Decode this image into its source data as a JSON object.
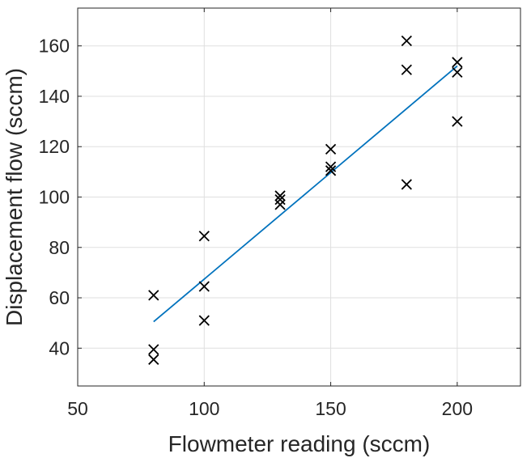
{
  "chart_data": {
    "type": "scatter",
    "xlabel": "Flowmeter reading (sccm)",
    "ylabel": "Displacement flow (sccm)",
    "xlim": [
      50,
      225
    ],
    "ylim": [
      25,
      175
    ],
    "xticks": [
      50,
      100,
      150,
      200
    ],
    "yticks": [
      40,
      60,
      80,
      100,
      120,
      140,
      160
    ],
    "grid": true,
    "legend": "none",
    "marker": "x",
    "marker_color": "#000000",
    "points": [
      {
        "x": 80,
        "y": 61
      },
      {
        "x": 80,
        "y": 39.5
      },
      {
        "x": 80,
        "y": 35.5
      },
      {
        "x": 100,
        "y": 84.5
      },
      {
        "x": 100,
        "y": 64.5
      },
      {
        "x": 100,
        "y": 51
      },
      {
        "x": 130,
        "y": 100.5
      },
      {
        "x": 130,
        "y": 99
      },
      {
        "x": 130,
        "y": 97
      },
      {
        "x": 150,
        "y": 119
      },
      {
        "x": 150,
        "y": 112
      },
      {
        "x": 150,
        "y": 110.5
      },
      {
        "x": 180,
        "y": 162
      },
      {
        "x": 180,
        "y": 150.5
      },
      {
        "x": 180,
        "y": 105
      },
      {
        "x": 200,
        "y": 153.5
      },
      {
        "x": 200,
        "y": 149.5
      },
      {
        "x": 200,
        "y": 130
      }
    ],
    "fit_line": {
      "color": "#0072BD",
      "x": [
        80,
        200
      ],
      "y": [
        50.5,
        152
      ]
    }
  }
}
